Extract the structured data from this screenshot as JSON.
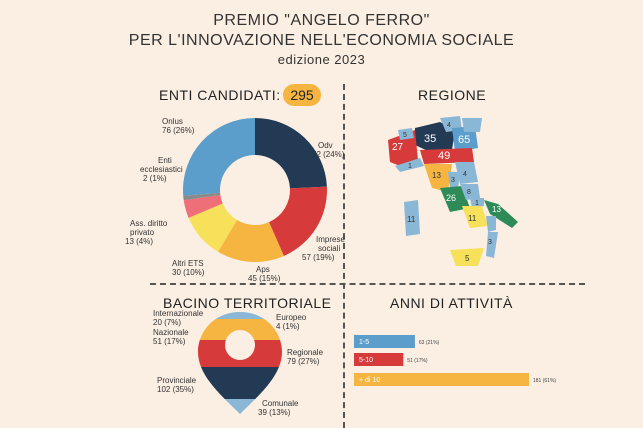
{
  "header": {
    "line1": "PREMIO \"ANGELO FERRO\"",
    "line2": "PER L'INNOVAZIONE NELL'ECONOMIA SOCIALE",
    "line3": "edizione 2023"
  },
  "sections": {
    "enti": "ENTI CANDIDATI:",
    "enti_total": "295",
    "regione": "REGIONE",
    "bacino": "BACINO TERRITORIALE",
    "anni": "ANNI DI ATTIVITÀ"
  },
  "colors": {
    "navy": "#223a53",
    "red": "#d63a3a",
    "orange": "#f6b540",
    "yellow": "#f7e05a",
    "pink": "#ef6f78",
    "lightblue": "#8ab7d6",
    "blue": "#5b9dcb",
    "gray": "#8a8a8a"
  },
  "chart_data": [
    {
      "type": "pie",
      "title": "ENTI CANDIDATI:",
      "total": "295",
      "slices": [
        {
          "name": "Odv",
          "value_text": "72 (24%)",
          "percent": 24,
          "color": "#223a53"
        },
        {
          "name": "Imprese sociali",
          "value_text": "57 (19%)",
          "percent": 19,
          "color": "#d63a3a"
        },
        {
          "name": "Aps",
          "value_text": "45 (15%)",
          "percent": 15,
          "color": "#f6b540"
        },
        {
          "name": "Altri ETS",
          "value_text": "30 (10%)",
          "percent": 10,
          "color": "#f7e05a"
        },
        {
          "name": "Ass. diritto privato",
          "value_text": "13 (4%)",
          "percent": 4,
          "color": "#ef6f78"
        },
        {
          "name": "Enti ecclesiastici",
          "value_text": "2 (1%)",
          "percent": 1,
          "color": "#8a8a8a"
        },
        {
          "name": "Onlus",
          "value_text": "76 (26%)",
          "percent": 26,
          "color": "#5b9dcb"
        }
      ]
    },
    {
      "type": "other",
      "title": "REGIONE",
      "regions": [
        {
          "label": "27",
          "color": "#d63a3a"
        },
        {
          "label": "35",
          "color": "#223a53"
        },
        {
          "label": "65",
          "color": "#5b9dcb"
        },
        {
          "label": "49",
          "color": "#d63a3a"
        },
        {
          "label": "4",
          "color": "#8ab7d6"
        },
        {
          "label": "5",
          "color": "#8ab7d6"
        },
        {
          "label": "1",
          "color": "#8ab7d6"
        },
        {
          "label": "13",
          "color": "#f6b540"
        },
        {
          "label": "3",
          "color": "#8ab7d6"
        },
        {
          "label": "4",
          "color": "#8ab7d6"
        },
        {
          "label": "26",
          "color": "#2e8b57"
        },
        {
          "label": "8",
          "color": "#8ab7d6"
        },
        {
          "label": "11",
          "color": "#f7e05a"
        },
        {
          "label": "1",
          "color": "#8ab7d6"
        },
        {
          "label": "13",
          "color": "#2e8b57"
        },
        {
          "label": "3",
          "color": "#8ab7d6"
        },
        {
          "label": "11",
          "color": "#8ab7d6"
        },
        {
          "label": "5",
          "color": "#f7e05a"
        }
      ]
    },
    {
      "type": "other",
      "title": "BACINO TERRITORIALE",
      "items": [
        {
          "name": "Internazionale",
          "value_text": "20 (7%)",
          "color": "#8ab7d6"
        },
        {
          "name": "Europeo",
          "value_text": "4 (1%)",
          "color": "#f6b540"
        },
        {
          "name": "Nazionale",
          "value_text": "51 (17%)",
          "color": "#f6b540"
        },
        {
          "name": "Regionale",
          "value_text": "79 (27%)",
          "color": "#d63a3a"
        },
        {
          "name": "Provinciale",
          "value_text": "102 (35%)",
          "color": "#223a53"
        },
        {
          "name": "Comunale",
          "value_text": "39 (13%)",
          "color": "#8ab7d6"
        }
      ]
    },
    {
      "type": "bar",
      "title": "ANNI DI ATTIVITÀ",
      "orientation": "horizontal",
      "categories": [
        "1-5",
        "5-10",
        "+ di 10"
      ],
      "values": [
        63,
        51,
        181
      ],
      "value_labels": [
        "63 (21%)",
        "51 (17%)",
        "181 (61%)"
      ],
      "colors": [
        "#5b9dcb",
        "#d63a3a",
        "#f6b540"
      ],
      "xlim": [
        0,
        181
      ]
    }
  ]
}
